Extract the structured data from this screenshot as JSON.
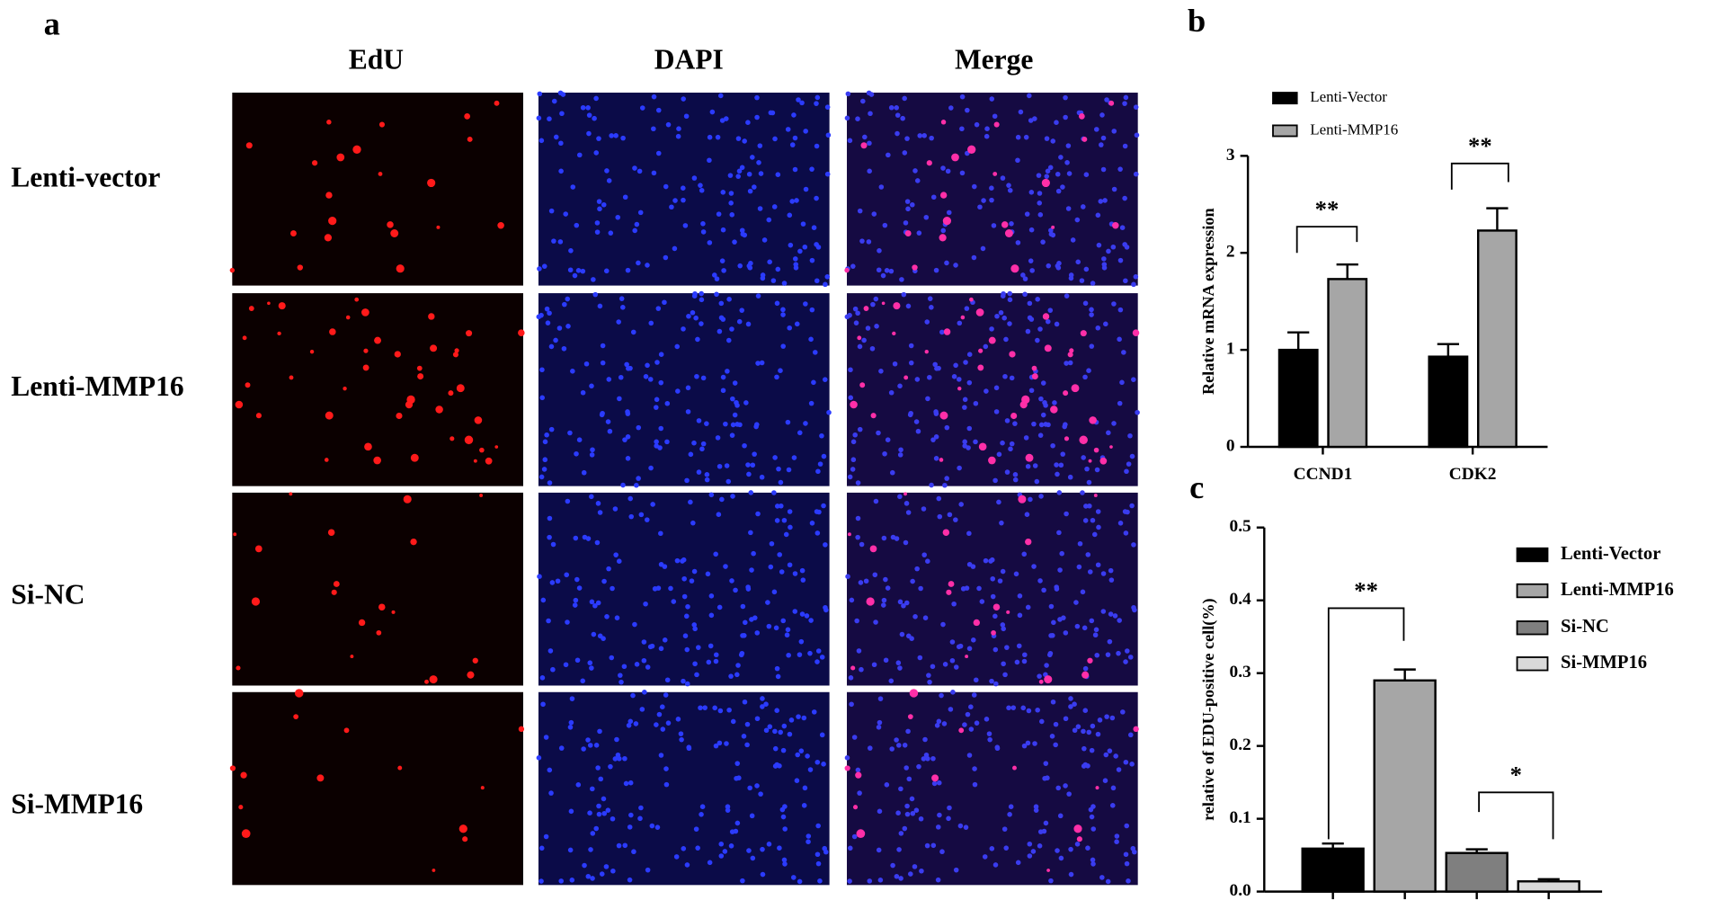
{
  "figure_a": {
    "label": "a",
    "columns": [
      "EdU",
      "DAPI",
      "Merge"
    ],
    "rows": [
      "Lenti-vector",
      "Lenti-MMP16",
      "Si-NC",
      "Si-MMP16"
    ]
  },
  "chart_data": [
    {
      "type": "bar",
      "label": "b",
      "y_label": "Relative mRNA expression",
      "categories": [
        "CCND1",
        "CDK2"
      ],
      "series": [
        {
          "name": "Lenti-Vector",
          "color": "#000000",
          "values": [
            1.0,
            0.93
          ],
          "errors": [
            0.18,
            0.13
          ]
        },
        {
          "name": "Lenti-MMP16",
          "color": "#a6a6a6",
          "values": [
            1.73,
            2.23
          ],
          "errors": [
            0.15,
            0.23
          ]
        }
      ],
      "ylim": [
        0,
        3
      ],
      "yticks": [
        0,
        1,
        2,
        3
      ],
      "annotations": [
        "**",
        "**"
      ]
    },
    {
      "type": "bar",
      "label": "c",
      "y_label": "relative  of EDU-positive cell(%)",
      "series": [
        {
          "name": "Lenti-Vector",
          "color": "#000000",
          "values": [
            0.059
          ],
          "errors": [
            0.007
          ]
        },
        {
          "name": "Lenti-MMP16",
          "color": "#a6a6a6",
          "values": [
            0.29
          ],
          "errors": [
            0.015
          ]
        },
        {
          "name": "Si-NC",
          "color": "#7f7f7f",
          "values": [
            0.053
          ],
          "errors": [
            0.005
          ]
        },
        {
          "name": "Si-MMP16",
          "color": "#d9d9d9",
          "values": [
            0.014
          ],
          "errors": [
            0.003
          ]
        }
      ],
      "ylim": [
        0,
        0.5
      ],
      "yticks": [
        {
          "value": 0,
          "label": "0.0"
        },
        0.1,
        0.2,
        0.3,
        0.4,
        0.5
      ],
      "annotations": [
        "**",
        "*"
      ]
    }
  ]
}
